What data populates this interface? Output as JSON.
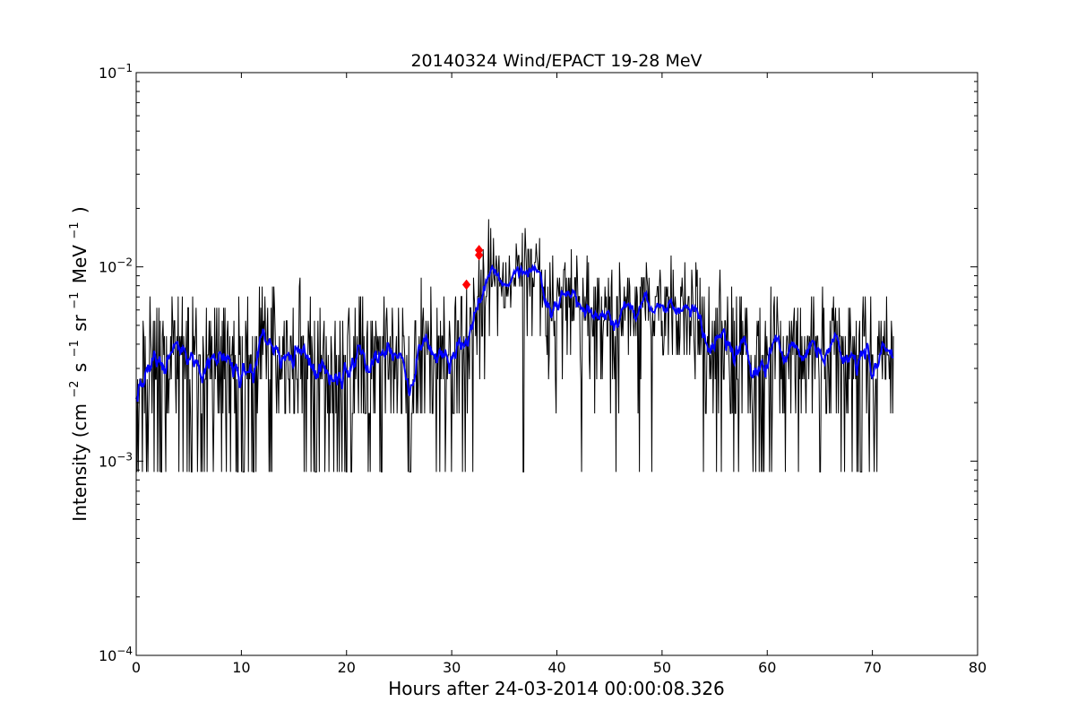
{
  "chart_data": {
    "type": "line",
    "title": "20140324 Wind/EPACT 19-28 MeV",
    "xlabel": "Hours after 24-03-2014 00:00:08.326",
    "ylabel_main": "Intensity (cm",
    "ylabel_sup1": "−2",
    "ylabel_mid1": "s",
    "ylabel_sup2": "−1",
    "ylabel_mid2": "sr",
    "ylabel_sup3": "−1",
    "ylabel_mid3": "MeV",
    "ylabel_sup4": "−1",
    "ylabel_end": ")",
    "xlim": [
      0,
      80
    ],
    "ylim": [
      0.0001,
      0.1
    ],
    "yscale": "log",
    "x_ticks": [
      0,
      10,
      20,
      30,
      40,
      50,
      60,
      70,
      80
    ],
    "x_tick_labels": [
      "0",
      "10",
      "20",
      "30",
      "40",
      "50",
      "60",
      "70",
      "80"
    ],
    "y_ticks": [
      {
        "value": 0.0001,
        "base": "10",
        "exp": "−4"
      },
      {
        "value": 0.001,
        "base": "10",
        "exp": "−3"
      },
      {
        "value": 0.01,
        "base": "10",
        "exp": "−2"
      },
      {
        "value": 0.1,
        "base": "10",
        "exp": "−1"
      }
    ],
    "grid": false,
    "raw_color": "#000000",
    "smooth_color": "#0000ff",
    "marker_color": "#ff0000",
    "baseline_segments": [
      {
        "x": [
          0,
          31
        ],
        "y": [
          0.0032,
          0.0032
        ]
      },
      {
        "x": [
          31,
          33,
          38
        ],
        "y": [
          0.0032,
          0.0088,
          0.0083
        ]
      },
      {
        "x": [
          38,
          42,
          48,
          56,
          72
        ],
        "y": [
          0.0083,
          0.0055,
          0.0062,
          0.0042,
          0.003
        ]
      }
    ],
    "markers": [
      {
        "x": 31.4,
        "y": 0.0081,
        "shape": "diamond"
      },
      {
        "x": 32.6,
        "y": 0.0115,
        "shape": "diamond"
      },
      {
        "x": 32.6,
        "y": 0.0122,
        "shape": "diamond"
      }
    ],
    "raw_envelope": {
      "x_start": 0,
      "x_end": 72,
      "min": 0.00088,
      "max": 0.018
    }
  }
}
